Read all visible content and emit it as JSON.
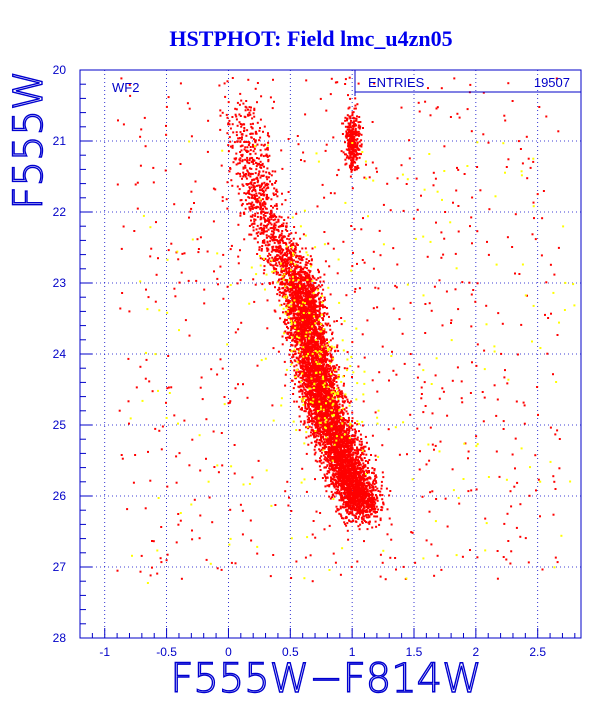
{
  "chart_data": {
    "type": "scatter",
    "title": "HSTPHOT: Field lmc_u4zn05",
    "xlabel": "F555W−F814W",
    "ylabel": "F555W",
    "xlim": [
      -1.2,
      2.85
    ],
    "ylim": [
      20,
      28
    ],
    "y_inverted": true,
    "grid": true,
    "x_ticks": [
      "-1",
      "-0.5",
      "0",
      "0.5",
      "1",
      "1.5",
      "2",
      "2.5"
    ],
    "x_tick_values": [
      -1,
      -0.5,
      0,
      0.5,
      1,
      1.5,
      2,
      2.5
    ],
    "y_ticks": [
      "20",
      "21",
      "22",
      "23",
      "24",
      "25",
      "26",
      "27",
      "28"
    ],
    "y_tick_values": [
      20,
      21,
      22,
      23,
      24,
      25,
      26,
      27,
      28
    ],
    "stats_box": {
      "label": "ENTRIES",
      "value": "19507"
    },
    "annotation": "WF2",
    "series": [
      {
        "color": "#ff0000",
        "components": [
          {
            "kind": "main_sequence",
            "count": 6000,
            "ridge": [
              [
                0.55,
                22.8
              ],
              [
                0.62,
                23.5
              ],
              [
                0.7,
                24.2
              ],
              [
                0.8,
                24.9
              ],
              [
                0.95,
                25.6
              ],
              [
                1.1,
                26.2
              ]
            ],
            "spread_color": 0.08,
            "spread_mag": 0.3
          },
          {
            "kind": "upper_sequence",
            "count": 900,
            "ridge": [
              [
                0.1,
                20.6
              ],
              [
                0.2,
                21.5
              ],
              [
                0.35,
                22.3
              ],
              [
                0.5,
                22.8
              ]
            ],
            "spread_color": 0.08,
            "spread_mag": 0.3
          },
          {
            "kind": "red_clump",
            "count": 350,
            "center": [
              1.0,
              21.0
            ],
            "spread_color": 0.03,
            "spread_mag": 0.22
          },
          {
            "kind": "field",
            "count": 700,
            "x_range": [
              -0.9,
              2.7
            ],
            "y_range": [
              20.1,
              27.2
            ]
          }
        ]
      },
      {
        "color": "#ffff00",
        "components": [
          {
            "kind": "main_sequence",
            "count": 220,
            "ridge": [
              [
                0.45,
                22.5
              ],
              [
                0.7,
                24.0
              ],
              [
                0.9,
                25.3
              ]
            ],
            "spread_color": 0.14,
            "spread_mag": 0.4
          },
          {
            "kind": "field",
            "count": 160,
            "x_range": [
              -0.8,
              2.8
            ],
            "y_range": [
              21.0,
              27.3
            ]
          }
        ]
      }
    ]
  }
}
